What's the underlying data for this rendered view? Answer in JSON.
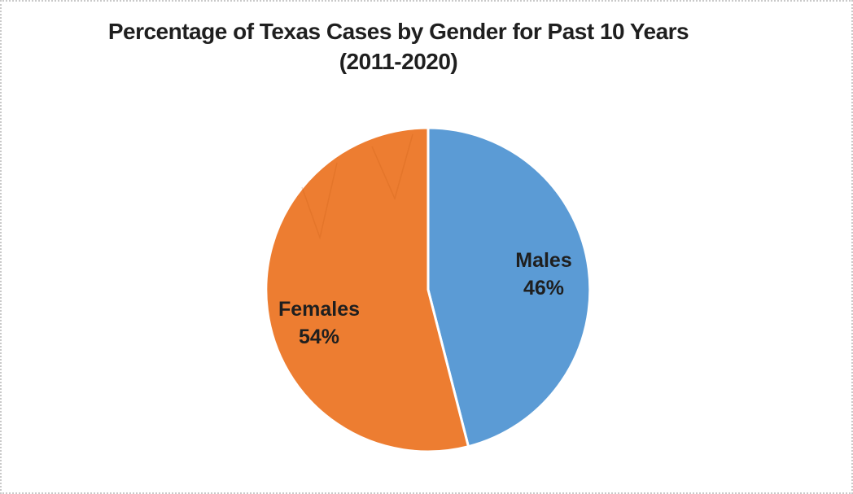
{
  "page": {
    "background_color": "#ffffff",
    "border_color": "#c9c9c9"
  },
  "chart_data": {
    "type": "pie",
    "title_line1": "Percentage of Texas Cases by Gender for Past 10 Years",
    "title_line2": "(2011-2020)",
    "slices": [
      {
        "label": "Males",
        "value": 46,
        "display": "46%",
        "color": "#5B9BD5"
      },
      {
        "label": "Females",
        "value": 54,
        "display": "54%",
        "color": "#ED7D31"
      }
    ],
    "start_angle_deg": 0,
    "direction": "clockwise",
    "label_position": "inside",
    "legend": "none",
    "text_color": "#1f1f1f",
    "slice_border_color": "#FFFFFF"
  }
}
